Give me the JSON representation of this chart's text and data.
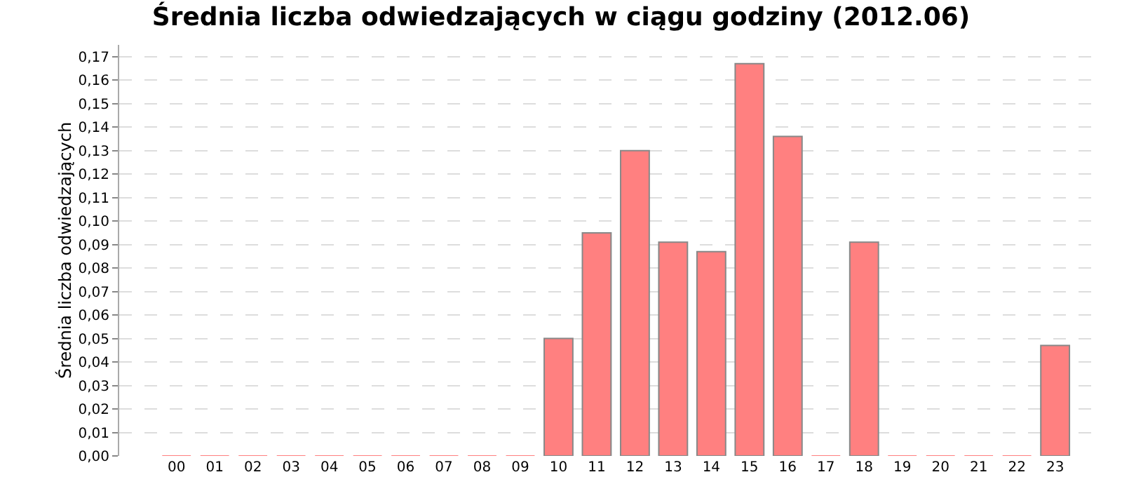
{
  "chart_data": {
    "type": "bar",
    "title": "Średnia liczba odwiedzających w ciągu godziny (2012.06)",
    "ylabel": "Średnia liczba odwiedzających",
    "categories": [
      "00",
      "01",
      "02",
      "03",
      "04",
      "05",
      "06",
      "07",
      "08",
      "09",
      "10",
      "11",
      "12",
      "13",
      "14",
      "15",
      "16",
      "17",
      "18",
      "19",
      "20",
      "21",
      "22",
      "23"
    ],
    "values": [
      0,
      0,
      0,
      0,
      0,
      0,
      0,
      0,
      0,
      0,
      0.05,
      0.095,
      0.13,
      0.091,
      0.087,
      0.167,
      0.136,
      0,
      0.091,
      0,
      0,
      0,
      0,
      0.047
    ],
    "color": "#ff8080",
    "ylim": [
      0,
      0.175
    ],
    "yticks": [
      {
        "value": 0,
        "label": "0,00"
      },
      {
        "value": 0.01,
        "label": "0,01"
      },
      {
        "value": 0.02,
        "label": "0,02"
      },
      {
        "value": 0.03,
        "label": "0,03"
      },
      {
        "value": 0.04,
        "label": "0,04"
      },
      {
        "value": 0.05,
        "label": "0,05"
      },
      {
        "value": 0.06,
        "label": "0,06"
      },
      {
        "value": 0.07,
        "label": "0,07"
      },
      {
        "value": 0.08,
        "label": "0,08"
      },
      {
        "value": 0.09,
        "label": "0,09"
      },
      {
        "value": 0.1,
        "label": "0,10"
      },
      {
        "value": 0.11,
        "label": "0,11"
      },
      {
        "value": 0.12,
        "label": "0,12"
      },
      {
        "value": 0.13,
        "label": "0,13"
      },
      {
        "value": 0.14,
        "label": "0,14"
      },
      {
        "value": 0.15,
        "label": "0,15"
      },
      {
        "value": 0.16,
        "label": "0,16"
      },
      {
        "value": 0.17,
        "label": "0,17"
      }
    ],
    "grid": "y"
  }
}
